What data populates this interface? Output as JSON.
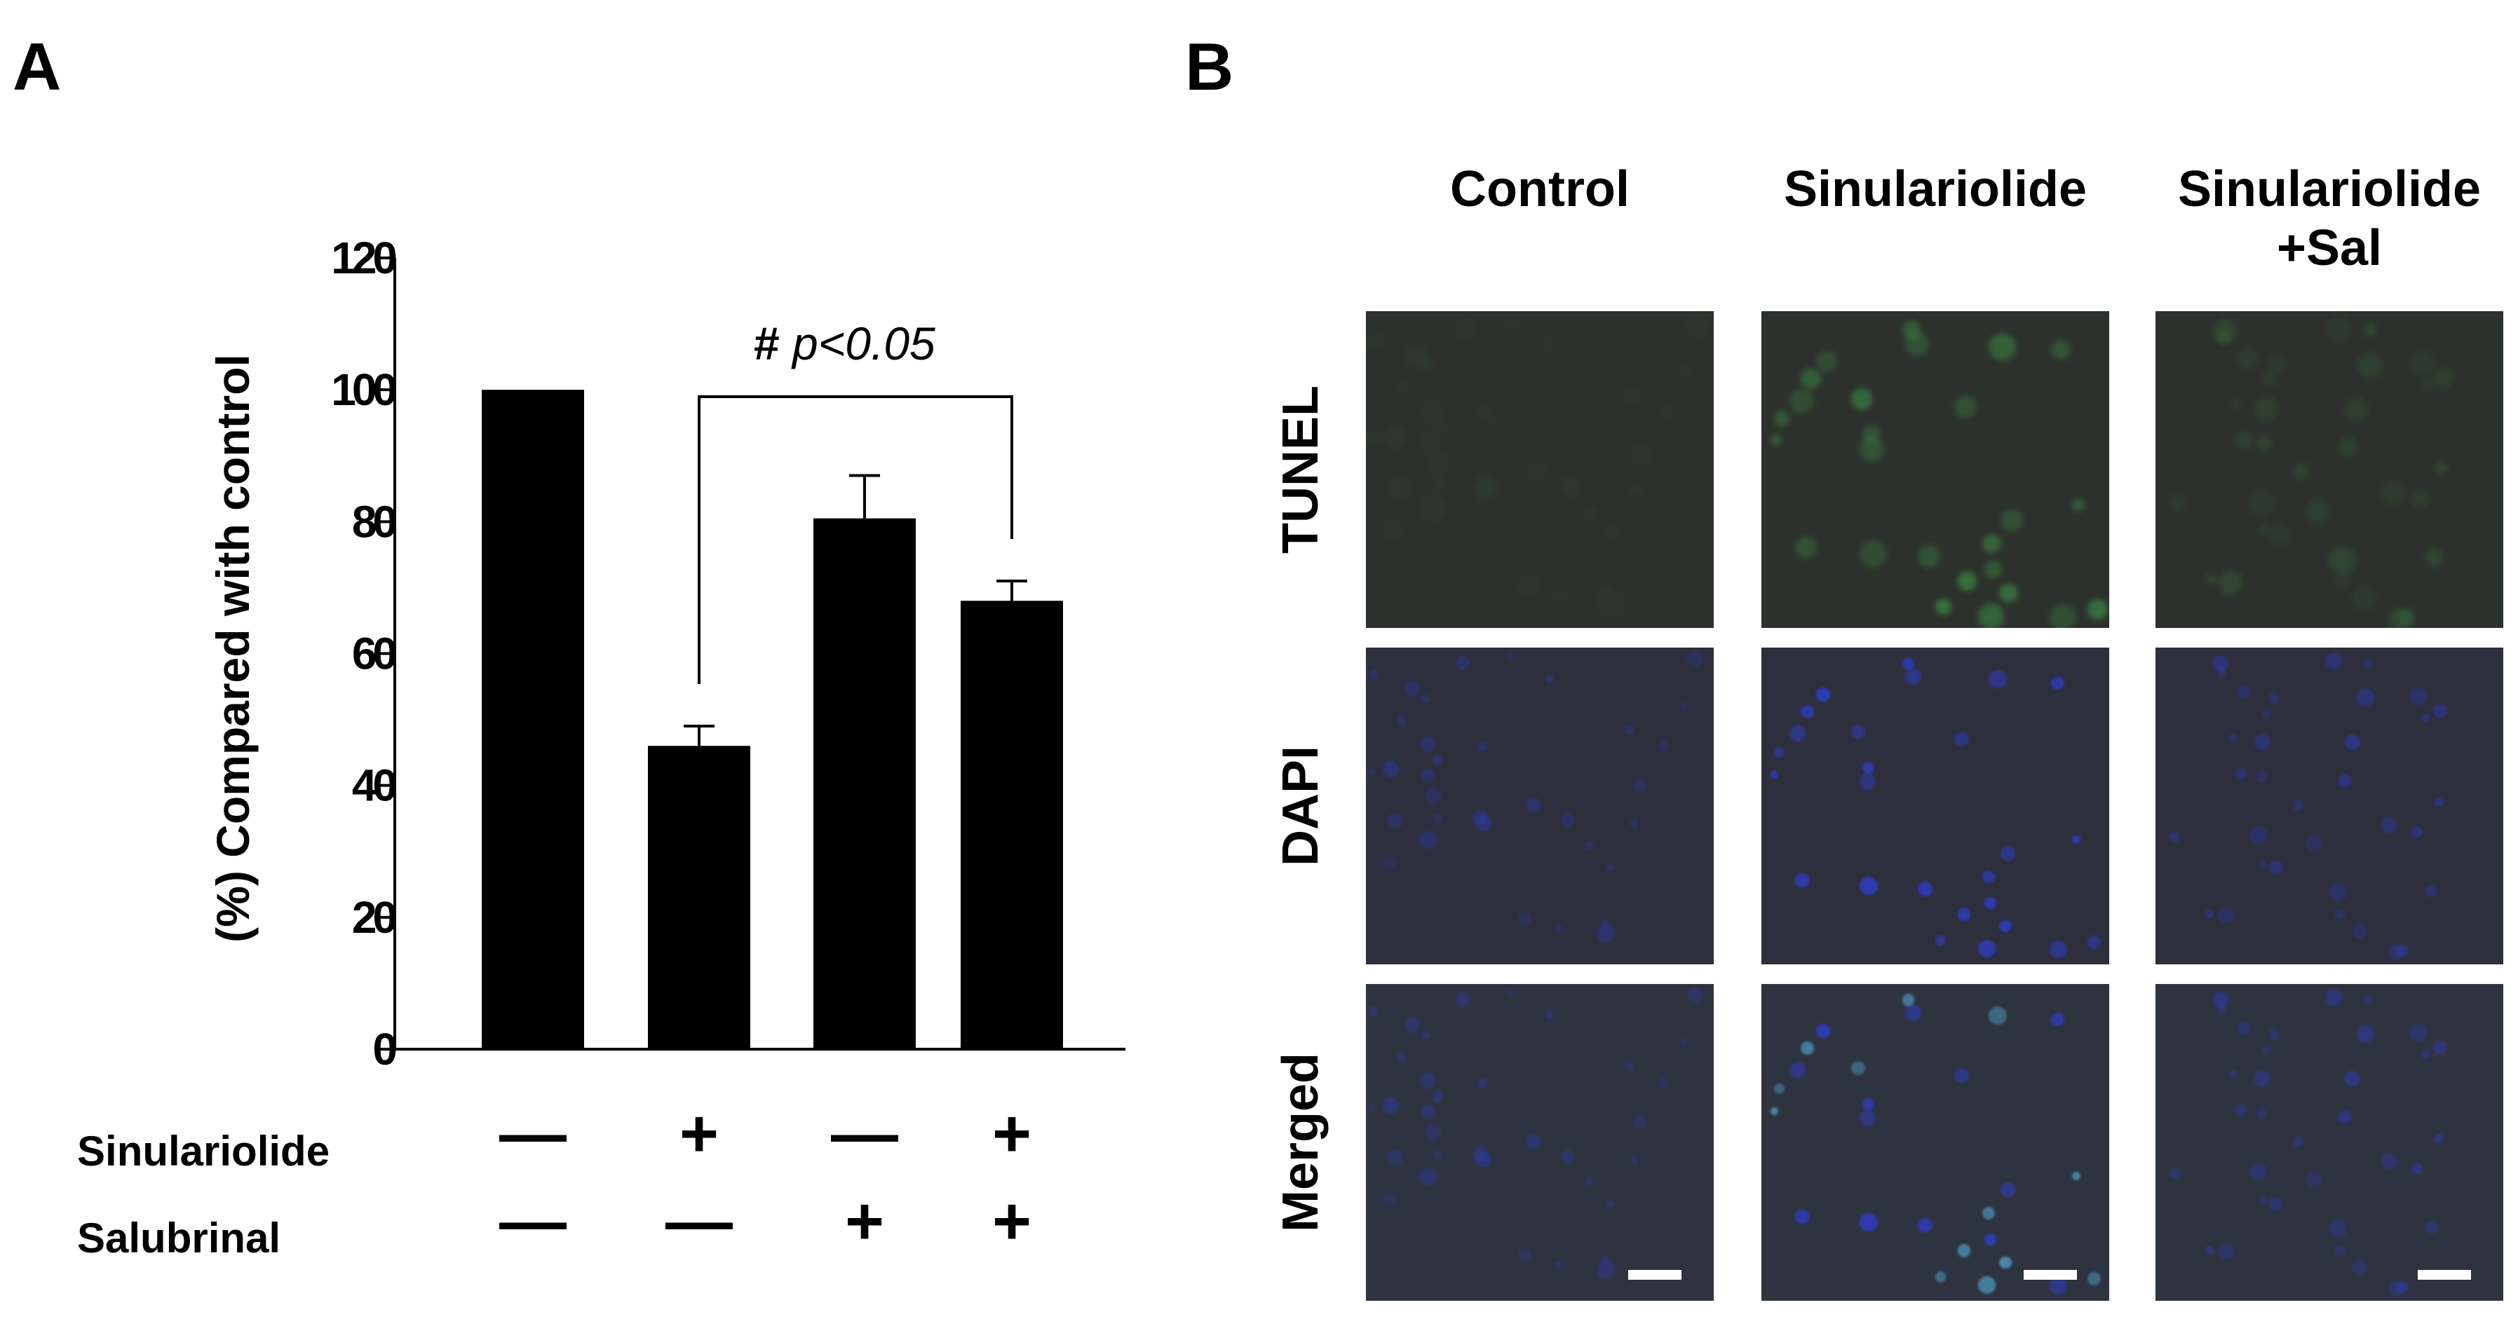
{
  "panels": {
    "a": "A",
    "b": "B"
  },
  "chart_data": {
    "type": "bar",
    "categories": [
      "1",
      "2",
      "3",
      "4"
    ],
    "values": [
      100,
      46,
      80.5,
      68
    ],
    "errors": [
      0,
      3,
      6.5,
      3
    ],
    "ylabel": "(%) Compared with control",
    "ylim": [
      0,
      120
    ],
    "yticks": [
      "0",
      "20",
      "40",
      "60",
      "80",
      "100",
      "120"
    ],
    "bar_color": "#000000",
    "grid": false,
    "significance": {
      "from": 1,
      "to": 3,
      "symbol": "#",
      "text": "p<0.05"
    }
  },
  "treatments": [
    {
      "label": "Sinulariolide",
      "signs": [
        "—",
        "+",
        "—",
        "+"
      ]
    },
    {
      "label": "Salubrinal",
      "signs": [
        "—",
        "—",
        "+",
        "+"
      ]
    }
  ],
  "microscopy": {
    "columns": [
      {
        "lines": [
          "Control"
        ]
      },
      {
        "lines": [
          "Sinulariolide"
        ]
      },
      {
        "lines": [
          "Sinulariolide",
          "+Sal"
        ]
      }
    ],
    "rows": [
      "TUNEL",
      "DAPI",
      "Merged"
    ],
    "colors": {
      "tunel_bg": "#2d312d",
      "dapi_bg": "#2d2f3d",
      "merged_bg": "#2e3340",
      "tunel_signal": "#3fa84a",
      "dapi_signal": "#2f3fd6"
    }
  }
}
